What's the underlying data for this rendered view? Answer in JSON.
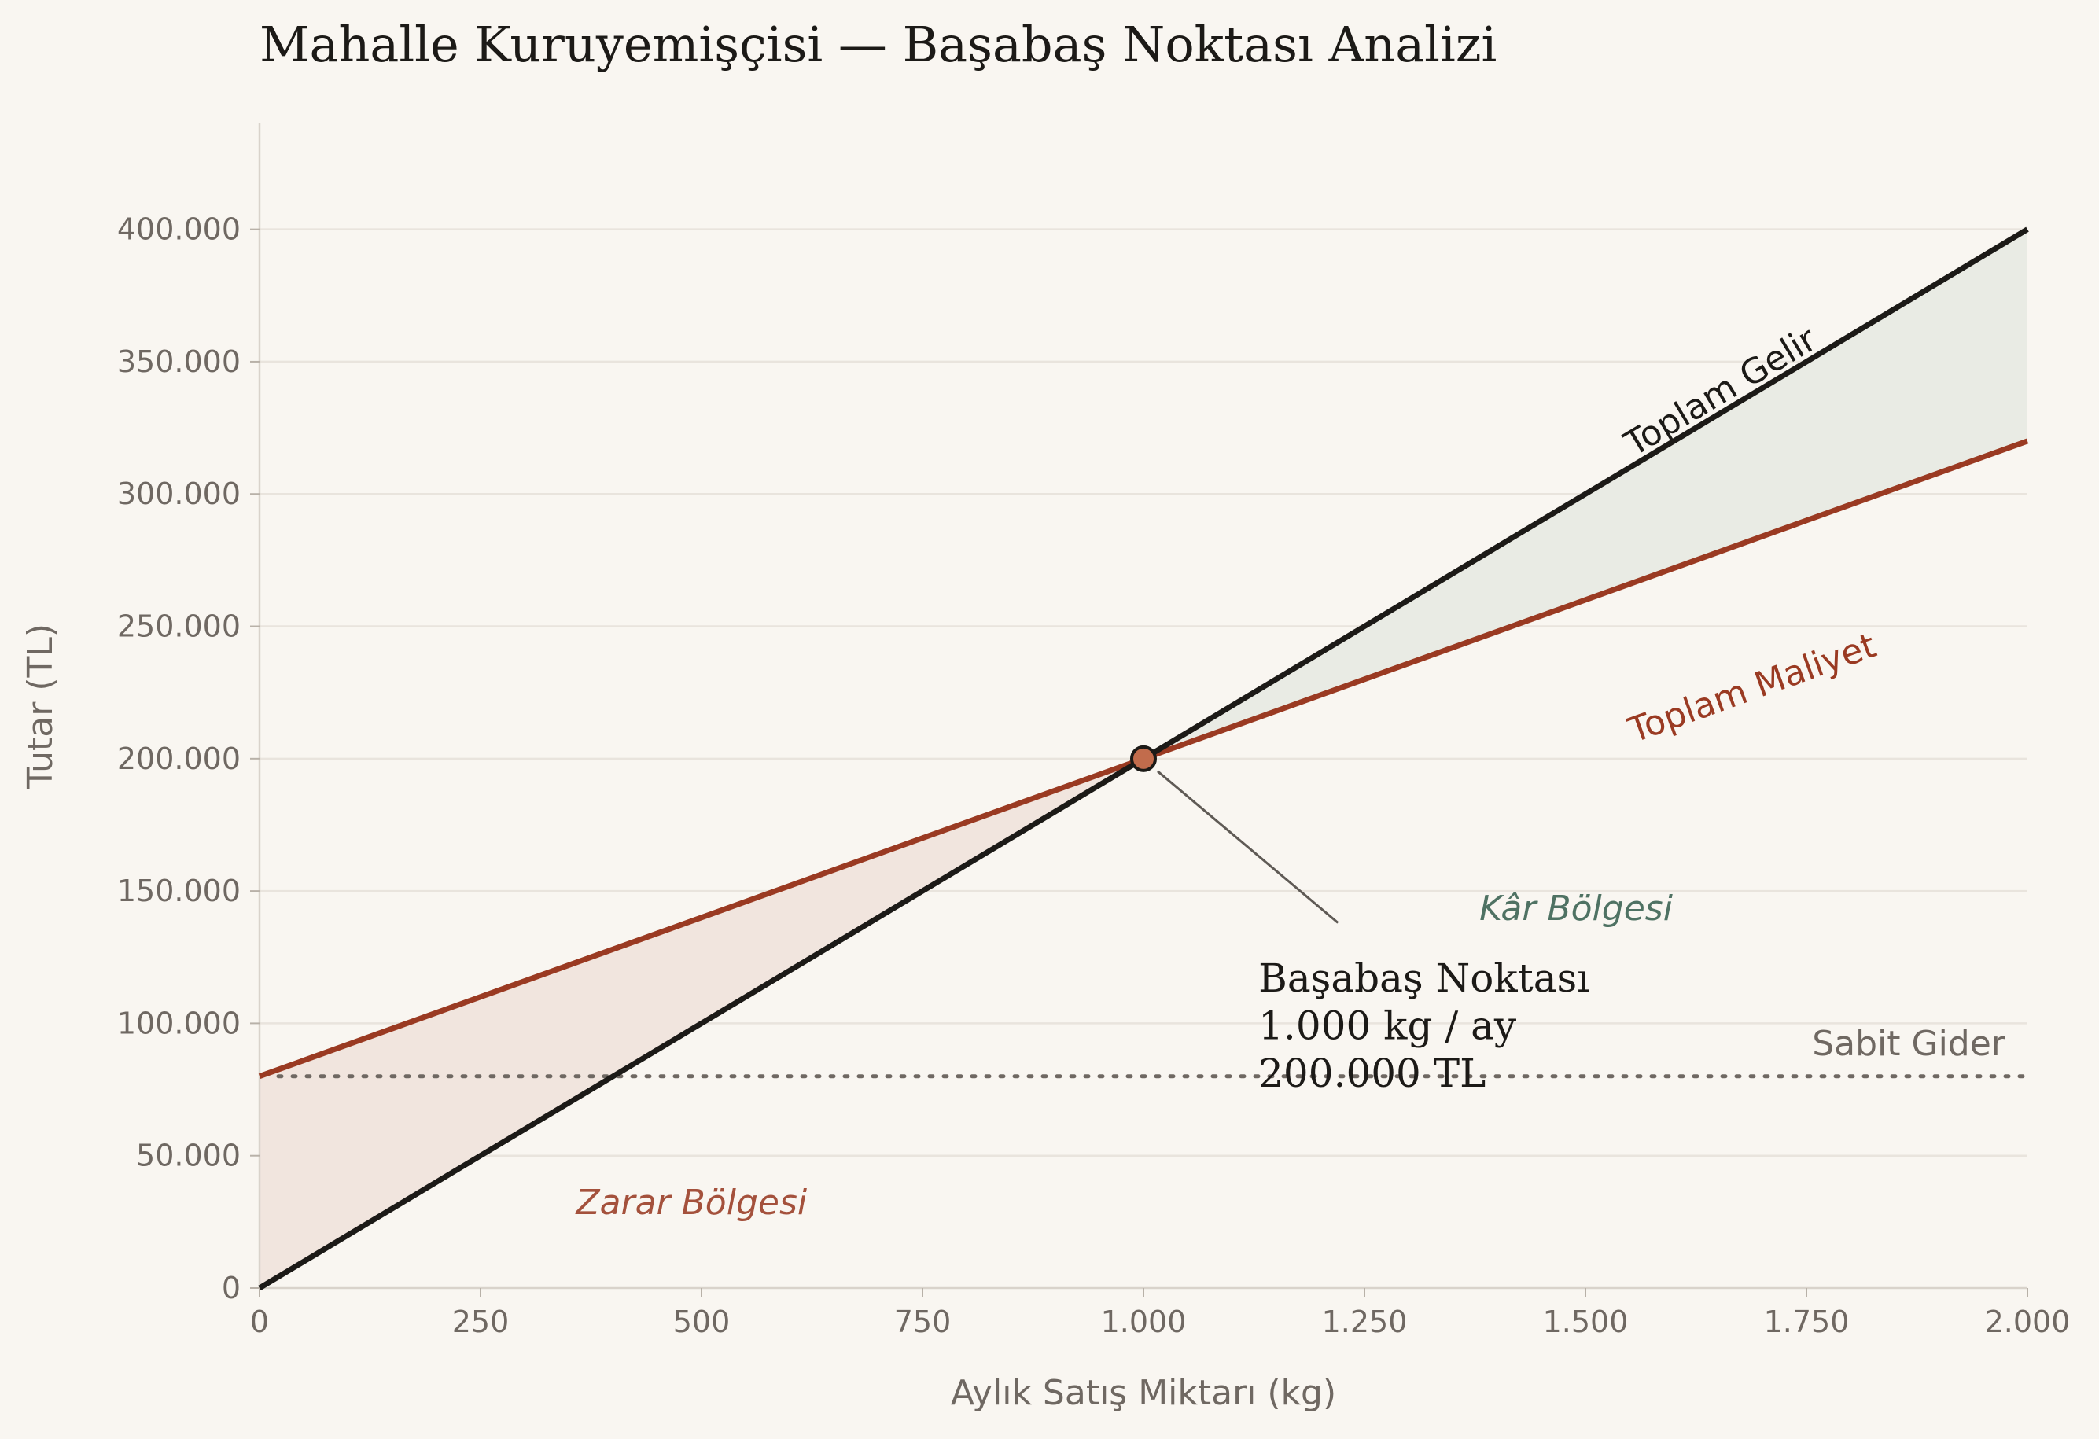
{
  "chart_data": {
    "type": "line",
    "title": "Mahalle Kuruyemişçisi — Başabaş Noktası Analizi",
    "xlabel": "Aylık Satış Miktarı (kg)",
    "ylabel": "Tutar (TL)",
    "xlim": [
      0,
      2000
    ],
    "ylim": [
      0,
      440000
    ],
    "x_ticks": [
      0,
      250,
      500,
      750,
      1000,
      1250,
      1500,
      1750,
      2000
    ],
    "x_tick_labels": [
      "0",
      "250",
      "500",
      "750",
      "1.000",
      "1.250",
      "1.500",
      "1.750",
      "2.000"
    ],
    "y_ticks": [
      0,
      50000,
      100000,
      150000,
      200000,
      250000,
      300000,
      350000,
      400000
    ],
    "y_tick_labels": [
      "0",
      "50.000",
      "100.000",
      "150.000",
      "200.000",
      "250.000",
      "300.000",
      "350.000",
      "400.000"
    ],
    "grid": "horizontal",
    "series": [
      {
        "name": "Toplam Gelir",
        "x": [
          0,
          2000
        ],
        "y": [
          0,
          400000
        ],
        "color": "#1c1a17"
      },
      {
        "name": "Toplam Maliyet",
        "x": [
          0,
          2000
        ],
        "y": [
          80000,
          320000
        ],
        "color": "#9a3a22"
      },
      {
        "name": "Sabit Gider",
        "x": [
          0,
          2000
        ],
        "y": [
          80000,
          80000
        ],
        "color": "#6f6862",
        "style": "dotted"
      }
    ],
    "regions": [
      {
        "label": "Zarar Bölgesi",
        "x_range": [
          0,
          1000
        ],
        "color": "#a4513c"
      },
      {
        "label": "Kâr Bölgesi",
        "x_range": [
          1000,
          2000
        ],
        "color": "#4f7263"
      }
    ],
    "breakeven": {
      "x": 1000,
      "y": 200000,
      "lines": [
        "Başabaş Noktası",
        "1.000 kg / ay",
        "200.000 TL"
      ]
    },
    "colors": {
      "background": "#f9f6f1",
      "grid": "#e9e4dd",
      "axis": "#d9d3cb",
      "loss_fill": "#f1e5de",
      "profit_fill": "#e9ebe4",
      "breakeven_marker": "#c26c4c"
    }
  }
}
